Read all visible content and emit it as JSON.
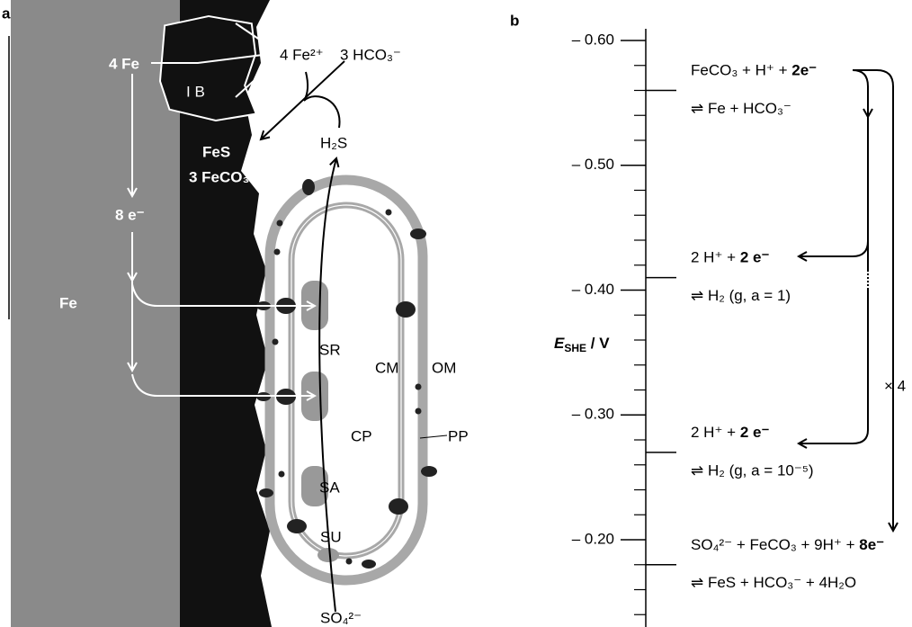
{
  "panel_a": {
    "label": "a",
    "iron": "Fe",
    "iron_atoms": "4 Fe",
    "inclusion": "I B",
    "ferrous": "4 Fe²⁺",
    "bicarbonate": "3 HCO₃⁻",
    "fes": "FeS",
    "feco3": "3 FeCO₃",
    "h2s": "H₂S",
    "electrons": "8 e⁻",
    "cell_labels": {
      "sr": "SR",
      "cm": "CM",
      "om": "OM",
      "cp": "CP",
      "pp": "PP",
      "sa": "SA",
      "su": "SU"
    },
    "sulfate": "SO₄²⁻"
  },
  "panel_b": {
    "label": "b",
    "axis_symbol": "E",
    "axis_subscript": "SHE",
    "axis_unit": " / V",
    "ticks": [
      {
        "value": -0.6,
        "label": "– 0.60"
      },
      {
        "value": -0.5,
        "label": "– 0.50"
      },
      {
        "value": -0.4,
        "label": "– 0.40"
      },
      {
        "value": -0.3,
        "label": "– 0.30"
      },
      {
        "value": -0.2,
        "label": "– 0.20"
      }
    ],
    "multiplier": "× 4",
    "couples": [
      {
        "potential": -0.56,
        "lhs": "FeCO₃ + H⁺ + ",
        "electrons": "2e⁻",
        "rhs": "⇌ Fe + HCO₃⁻"
      },
      {
        "potential": -0.41,
        "lhs": "2 H⁺ + ",
        "electrons": "2 e⁻",
        "rhs": "⇌ H₂ (g, a = 1)"
      },
      {
        "potential": -0.27,
        "lhs": "2 H⁺ + ",
        "electrons": "2 e⁻",
        "rhs": "⇌ H₂ (g, a = 10⁻⁵)"
      },
      {
        "potential": -0.18,
        "lhs": "SO₄²⁻ + FeCO₃ + 9H⁺ + ",
        "electrons": "8e⁻",
        "rhs": "⇌ FeS + HCO₃⁻ + 4H₂O"
      }
    ]
  }
}
